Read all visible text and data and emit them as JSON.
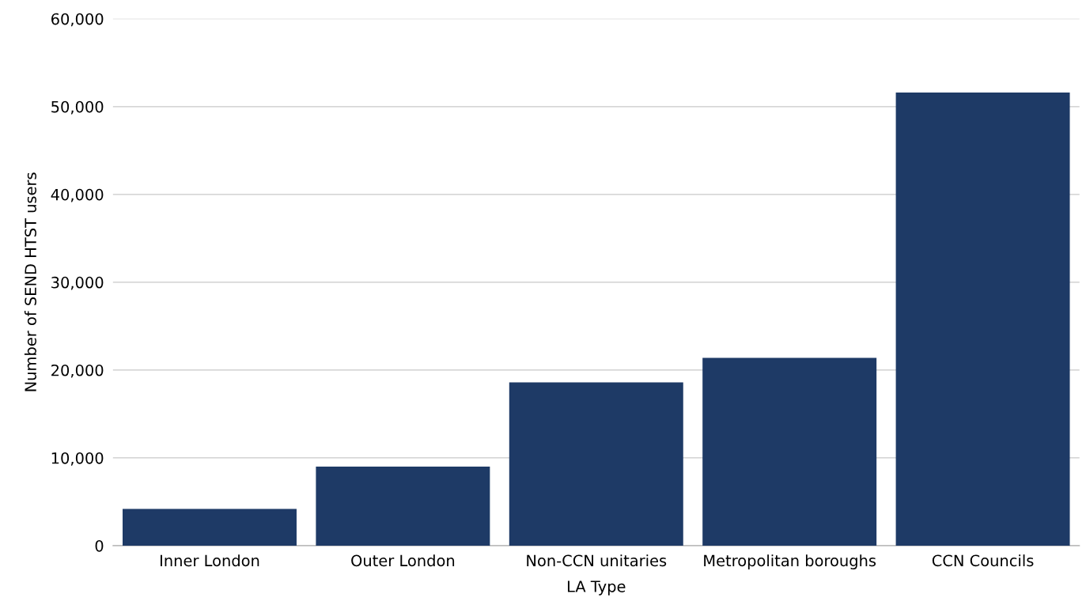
{
  "chart_data": {
    "type": "bar",
    "xlabel": "LA Type",
    "ylabel": "Number of SEND HTST users",
    "categories": [
      "Inner London",
      "Outer London",
      "Non-CCN unitaries",
      "Metropolitan boroughs",
      "CCN Councils"
    ],
    "values": [
      4200,
      9000,
      18600,
      21400,
      51600
    ],
    "color": "#1e3a66",
    "ylim": [
      0,
      60000
    ],
    "yticks": [
      {
        "value": 0,
        "label": "0"
      },
      {
        "value": 10000,
        "label": "10,000"
      },
      {
        "value": 20000,
        "label": "20,000"
      },
      {
        "value": 30000,
        "label": "30,000"
      },
      {
        "value": 40000,
        "label": "40,000"
      },
      {
        "value": 50000,
        "label": "50,000"
      },
      {
        "value": 60000,
        "label": "60,000"
      }
    ],
    "grid": "y",
    "legend": false
  }
}
